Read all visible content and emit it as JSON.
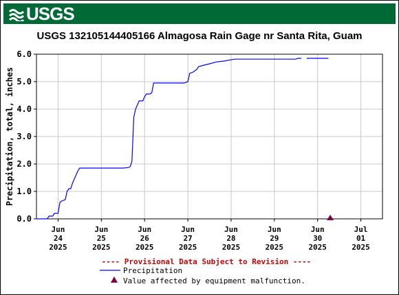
{
  "header": {
    "logo_text": "USGS",
    "logo_alt": "usgs-logo"
  },
  "colors": {
    "banner": "#006a37",
    "line": "#0000ff",
    "grid": "#c8c8c8",
    "warning": "#cc0000",
    "marker": "#7a0040"
  },
  "chart_data": {
    "type": "line",
    "title": "USGS 132105144405166 Almagosa Rain Gage nr Santa Rita, Guam",
    "ylabel": "Precipitation, total, inches",
    "xlabel": "",
    "ylim": [
      0,
      6.0
    ],
    "yticks": [
      "0.0",
      "1.0",
      "2.0",
      "3.0",
      "4.0",
      "5.0",
      "6.0"
    ],
    "xlim": [
      "2025-06-23T12:00",
      "2025-07-01T12:00"
    ],
    "xticks": [
      {
        "at": "2025-06-24",
        "lines": [
          "Jun",
          "24",
          "2025"
        ]
      },
      {
        "at": "2025-06-25",
        "lines": [
          "Jun",
          "25",
          "2025"
        ]
      },
      {
        "at": "2025-06-26",
        "lines": [
          "Jun",
          "26",
          "2025"
        ]
      },
      {
        "at": "2025-06-27",
        "lines": [
          "Jun",
          "27",
          "2025"
        ]
      },
      {
        "at": "2025-06-28",
        "lines": [
          "Jun",
          "28",
          "2025"
        ]
      },
      {
        "at": "2025-06-29",
        "lines": [
          "Jun",
          "29",
          "2025"
        ]
      },
      {
        "at": "2025-06-30",
        "lines": [
          "Jun",
          "30",
          "2025"
        ]
      },
      {
        "at": "2025-07-01",
        "lines": [
          "Jul",
          "01",
          "2025"
        ]
      }
    ],
    "grid": true,
    "series": [
      {
        "name": "Precipitation",
        "segments": [
          [
            [
              "2025-06-23T12:00",
              0.0
            ],
            [
              "2025-06-23T18:00",
              0.0
            ],
            [
              "2025-06-23T19:00",
              0.1
            ],
            [
              "2025-06-23T21:00",
              0.1
            ],
            [
              "2025-06-23T22:00",
              0.2
            ],
            [
              "2025-06-24T00:00",
              0.2
            ],
            [
              "2025-06-24T01:00",
              0.6
            ],
            [
              "2025-06-24T02:00",
              0.65
            ],
            [
              "2025-06-24T04:00",
              0.7
            ],
            [
              "2025-06-24T05:00",
              1.0
            ],
            [
              "2025-06-24T06:00",
              1.1
            ],
            [
              "2025-06-24T07:00",
              1.1
            ],
            [
              "2025-06-24T08:00",
              1.3
            ],
            [
              "2025-06-24T09:00",
              1.45
            ],
            [
              "2025-06-24T10:00",
              1.6
            ],
            [
              "2025-06-24T11:00",
              1.75
            ],
            [
              "2025-06-24T12:00",
              1.85
            ],
            [
              "2025-06-25T00:00",
              1.85
            ],
            [
              "2025-06-25T12:00",
              1.85
            ],
            [
              "2025-06-25T15:00",
              1.87
            ],
            [
              "2025-06-25T16:00",
              1.9
            ],
            [
              "2025-06-25T17:00",
              2.1
            ],
            [
              "2025-06-25T18:00",
              3.7
            ],
            [
              "2025-06-25T19:00",
              4.0
            ],
            [
              "2025-06-25T20:00",
              4.15
            ],
            [
              "2025-06-25T21:00",
              4.3
            ],
            [
              "2025-06-25T23:00",
              4.3
            ],
            [
              "2025-06-26T00:00",
              4.45
            ],
            [
              "2025-06-26T01:00",
              4.55
            ],
            [
              "2025-06-26T03:00",
              4.55
            ],
            [
              "2025-06-26T04:00",
              4.6
            ],
            [
              "2025-06-26T05:00",
              4.95
            ],
            [
              "2025-06-26T12:00",
              4.95
            ],
            [
              "2025-06-26T22:00",
              4.95
            ],
            [
              "2025-06-27T00:00",
              5.0
            ],
            [
              "2025-06-27T01:00",
              5.3
            ],
            [
              "2025-06-27T03:00",
              5.35
            ],
            [
              "2025-06-27T05:00",
              5.45
            ],
            [
              "2025-06-27T06:00",
              5.55
            ],
            [
              "2025-06-27T09:00",
              5.6
            ],
            [
              "2025-06-27T12:00",
              5.65
            ],
            [
              "2025-06-27T16:00",
              5.72
            ],
            [
              "2025-06-27T20:00",
              5.75
            ],
            [
              "2025-06-28T02:00",
              5.82
            ],
            [
              "2025-06-28T12:00",
              5.82
            ],
            [
              "2025-06-29T00:00",
              5.82
            ],
            [
              "2025-06-29T12:00",
              5.82
            ],
            [
              "2025-06-29T13:00",
              5.85
            ],
            [
              "2025-06-29T15:00",
              5.85
            ]
          ],
          [
            [
              "2025-06-29T18:00",
              5.85
            ],
            [
              "2025-06-30T06:00",
              5.85
            ]
          ]
        ]
      }
    ],
    "markers": [
      {
        "name": "Value affected by equipment malfunction.",
        "x": "2025-06-30T07:00",
        "y": 0.0
      }
    ],
    "legend": {
      "placement": "bottom",
      "notice": "---- Provisional Data Subject to Revision ----",
      "items": [
        {
          "label": "Precipitation",
          "symbol": "line"
        },
        {
          "label": "Value affected by equipment malfunction.",
          "symbol": "triangle"
        }
      ]
    }
  }
}
